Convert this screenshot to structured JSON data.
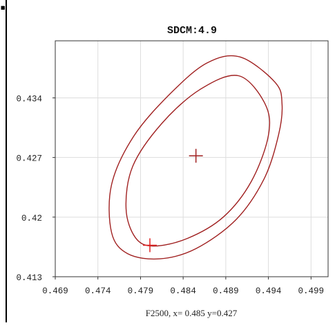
{
  "chart_data": {
    "type": "contour",
    "title": "SDCM:4.9",
    "xlim": [
      0.469,
      0.501
    ],
    "ylim": [
      0.413,
      0.4407
    ],
    "x_ticks": [
      0.469,
      0.474,
      0.479,
      0.484,
      0.489,
      0.494,
      0.499
    ],
    "x_tick_labels": [
      "0.469",
      "0.474",
      "0.479",
      "0.484",
      "0.489",
      "0.494",
      "0.499"
    ],
    "y_ticks": [
      0.413,
      0.42,
      0.427,
      0.434
    ],
    "y_tick_labels": [
      "0.413",
      "0.42",
      "0.427",
      "0.434"
    ],
    "grid": true,
    "contours": [
      {
        "role": "outer",
        "color": "#a02020",
        "points": [
          [
            0.4907,
            0.4388
          ],
          [
            0.4948,
            0.4358
          ],
          [
            0.4956,
            0.4333
          ],
          [
            0.4952,
            0.4297
          ],
          [
            0.4935,
            0.4245
          ],
          [
            0.4902,
            0.4197
          ],
          [
            0.4855,
            0.4163
          ],
          [
            0.4813,
            0.4151
          ],
          [
            0.4775,
            0.4157
          ],
          [
            0.4756,
            0.4182
          ],
          [
            0.4756,
            0.4238
          ],
          [
            0.4782,
            0.4295
          ],
          [
            0.4825,
            0.4345
          ],
          [
            0.4868,
            0.4381
          ],
          [
            0.4907,
            0.4388
          ]
        ]
      },
      {
        "role": "inner",
        "color": "#a02020",
        "points": [
          [
            0.4905,
            0.4366
          ],
          [
            0.4936,
            0.4333
          ],
          [
            0.494,
            0.4296
          ],
          [
            0.492,
            0.4242
          ],
          [
            0.4887,
            0.42
          ],
          [
            0.4845,
            0.4175
          ],
          [
            0.4805,
            0.4166
          ],
          [
            0.4784,
            0.4176
          ],
          [
            0.4773,
            0.421
          ],
          [
            0.4781,
            0.426
          ],
          [
            0.4815,
            0.431
          ],
          [
            0.486,
            0.435
          ],
          [
            0.4905,
            0.4366
          ]
        ]
      }
    ],
    "markers": [
      {
        "role": "center",
        "x": 0.4855,
        "y": 0.4272,
        "color": "#a02020"
      },
      {
        "role": "sample",
        "x": 0.4801,
        "y": 0.4167,
        "color": "#e02020"
      }
    ],
    "footer_text": "F2500,  x= 0.485 y=0.427",
    "colors": {
      "contour": "#a02020",
      "sample_marker": "#e02020",
      "grid": "#dddddd",
      "axes": "#333333"
    }
  }
}
